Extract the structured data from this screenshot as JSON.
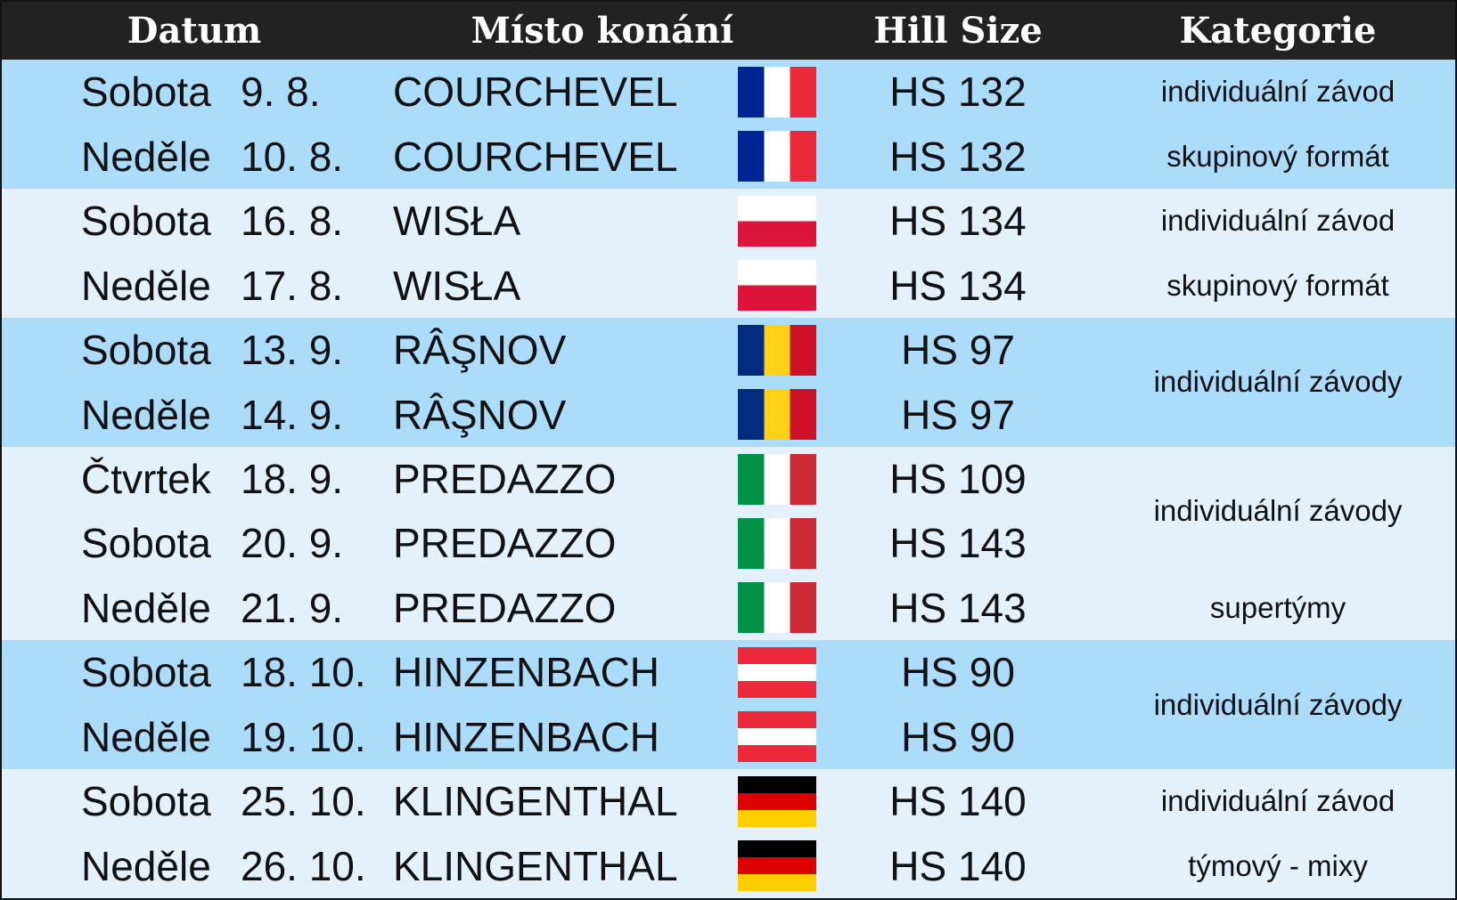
{
  "header": {
    "datum": "Datum",
    "misto": "Místo konání",
    "hill": "Hill Size",
    "kategorie": "Kategorie"
  },
  "table": {
    "rows": [
      [
        "Sobota",
        "9. 8.",
        "COURCHEVEL",
        "HS 132"
      ],
      [
        "Neděle",
        "10. 8.",
        "COURCHEVEL",
        "HS 132"
      ],
      [
        "Sobota",
        "16. 8.",
        "WISŁA",
        "HS 134"
      ],
      [
        "Neděle",
        "17. 8.",
        "WISŁA",
        "HS 134"
      ],
      [
        "Sobota",
        "13. 9.",
        "RÂŞNOV",
        "HS 97"
      ],
      [
        "Neděle",
        "14. 9.",
        "RÂŞNOV",
        "HS 97"
      ],
      [
        "Čtvrtek",
        "18. 9.",
        "PREDAZZO",
        "HS 109"
      ],
      [
        "Sobota",
        "20. 9.",
        "PREDAZZO",
        "HS 143"
      ],
      [
        "Neděle",
        "21. 9.",
        "PREDAZZO",
        "HS 143"
      ],
      [
        "Sobota",
        "18. 10.",
        "HINZENBACH",
        "HS 90"
      ],
      [
        "Neděle",
        "19. 10.",
        "HINZENBACH",
        "HS 90"
      ],
      [
        "Sobota",
        "25. 10.",
        "KLINGENTHAL",
        "HS 140"
      ],
      [
        "Neděle",
        "26. 10.",
        "KLINGENTHAL",
        "HS 140"
      ]
    ],
    "kategorie": [
      "individuální závod",
      "skupinový formát",
      "individuální závod",
      "skupinový formát",
      "individuální závody",
      "individuální závody",
      "supertýmy",
      "individuální závody",
      "individuální závod",
      "týmový - mixy"
    ]
  }
}
